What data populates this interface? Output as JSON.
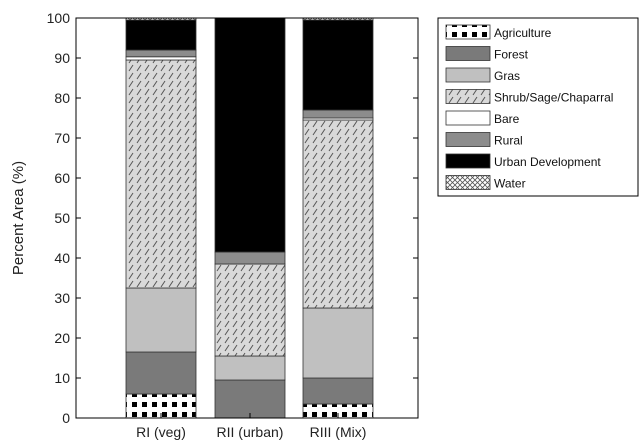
{
  "chart_data": {
    "type": "bar",
    "stacked": true,
    "title": "",
    "xlabel": "",
    "ylabel": "Percent Area (%)",
    "ylim": [
      0,
      100
    ],
    "yticks": [
      0,
      10,
      20,
      30,
      40,
      50,
      60,
      70,
      80,
      90,
      100
    ],
    "grid": false,
    "legend_position": "right",
    "categories": [
      "RI (veg)",
      "RII (urban)",
      "RIII (Mix)"
    ],
    "series": [
      {
        "name": "Agriculture",
        "values": [
          6,
          0,
          3.5
        ],
        "fill": "dots",
        "color": "#ffffff"
      },
      {
        "name": "Forest",
        "values": [
          10.5,
          9.5,
          6.5
        ],
        "fill": "solid",
        "color": "#7a7a7a"
      },
      {
        "name": "Gras",
        "values": [
          16,
          6,
          17.5
        ],
        "fill": "solid",
        "color": "#c0c0c0"
      },
      {
        "name": "Shrub/Sage/Chaparral",
        "values": [
          57,
          23,
          47
        ],
        "fill": "hatch",
        "color": "#d9d9d9"
      },
      {
        "name": "Bare",
        "values": [
          0.8,
          0,
          0.5
        ],
        "fill": "solid",
        "color": "#ffffff"
      },
      {
        "name": "Rural",
        "values": [
          1.7,
          3,
          2
        ],
        "fill": "solid",
        "color": "#8c8c8c"
      },
      {
        "name": "Urban Development",
        "values": [
          7.5,
          58.5,
          22.5
        ],
        "fill": "solid",
        "color": "#000000"
      },
      {
        "name": "Water",
        "values": [
          0.5,
          0,
          0.5
        ],
        "fill": "crosshatch",
        "color": "#ffffff"
      }
    ]
  }
}
